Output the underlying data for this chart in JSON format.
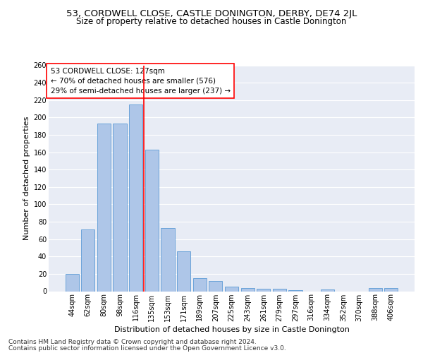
{
  "title1": "53, CORDWELL CLOSE, CASTLE DONINGTON, DERBY, DE74 2JL",
  "title2": "Size of property relative to detached houses in Castle Donington",
  "xlabel": "Distribution of detached houses by size in Castle Donington",
  "ylabel": "Number of detached properties",
  "categories": [
    "44sqm",
    "62sqm",
    "80sqm",
    "98sqm",
    "116sqm",
    "135sqm",
    "153sqm",
    "171sqm",
    "189sqm",
    "207sqm",
    "225sqm",
    "243sqm",
    "261sqm",
    "279sqm",
    "297sqm",
    "316sqm",
    "334sqm",
    "352sqm",
    "370sqm",
    "388sqm",
    "406sqm"
  ],
  "values": [
    20,
    71,
    193,
    193,
    215,
    163,
    73,
    46,
    15,
    12,
    5,
    4,
    3,
    3,
    1,
    0,
    2,
    0,
    0,
    4,
    4
  ],
  "bar_color": "#aec6e8",
  "bar_edge_color": "#5b9bd5",
  "bg_color": "#e8ecf5",
  "grid_color": "#ffffff",
  "vline_color": "red",
  "annotation_text": "53 CORDWELL CLOSE: 127sqm\n← 70% of detached houses are smaller (576)\n29% of semi-detached houses are larger (237) →",
  "annotation_box_color": "white",
  "annotation_box_edge": "red",
  "footer1": "Contains HM Land Registry data © Crown copyright and database right 2024.",
  "footer2": "Contains public sector information licensed under the Open Government Licence v3.0.",
  "ylim": [
    0,
    260
  ],
  "title1_fontsize": 9.5,
  "title2_fontsize": 8.5,
  "xlabel_fontsize": 8,
  "ylabel_fontsize": 8,
  "tick_fontsize": 7,
  "footer_fontsize": 6.5,
  "annotation_fontsize": 7.5
}
